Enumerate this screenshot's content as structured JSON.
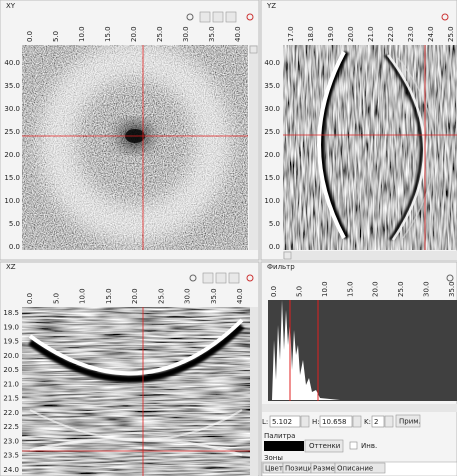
{
  "panels": [
    {
      "title": "XY",
      "top_ticks": [
        "0.0",
        "5.0",
        "10.0",
        "15.0",
        "20.0",
        "25.0",
        "30.0",
        "35.0",
        "40.0"
      ],
      "left_ticks": [
        "40.0",
        "35.0",
        "30.0",
        "25.0",
        "20.0",
        "15.0",
        "10.0",
        "5.0",
        "0.0"
      ]
    },
    {
      "title": "YZ",
      "top_ticks": [
        "17.0",
        "18.0",
        "19.0",
        "20.0",
        "21.0",
        "22.0",
        "23.0",
        "24.0",
        "25.0"
      ],
      "left_ticks": [
        "40.0",
        "35.0",
        "30.0",
        "25.0",
        "20.0",
        "15.0",
        "10.0",
        "5.0",
        "0.0"
      ]
    },
    {
      "title": "XZ",
      "top_ticks": [
        "0.0",
        "5.0",
        "10.0",
        "15.0",
        "20.0",
        "25.0",
        "30.0",
        "35.0",
        "40.0"
      ],
      "left_ticks": [
        "18.5",
        "19.0",
        "19.5",
        "20.0",
        "20.5",
        "21.0",
        "21.5",
        "22.0",
        "22.5",
        "23.0",
        "23.5",
        "24.0"
      ]
    }
  ],
  "filter": {
    "title": "Фильтр",
    "top_ticks": [
      "0.0",
      "5.0",
      "10.0",
      "15.0",
      "20.0",
      "25.0",
      "30.0",
      "35.0"
    ],
    "l_label": "L:",
    "l_value": "5.102",
    "h_label": "H:",
    "h_value": "10.658",
    "k_label": "K:",
    "k_value": "2",
    "apply": "Прим.",
    "palette_title": "Палитра",
    "palette_value": "Оттенки",
    "invert": "Инв.",
    "zones_title": "Зоны",
    "zones_columns": [
      "Цвет",
      "Позиция",
      "Размер",
      "Описание"
    ]
  }
}
